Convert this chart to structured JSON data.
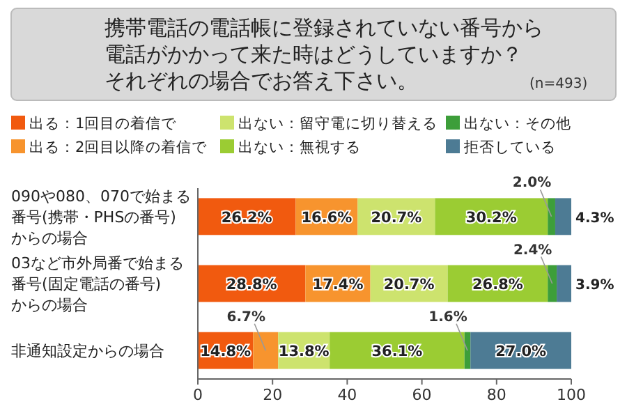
{
  "chart_data": {
    "type": "bar",
    "orientation": "horizontal",
    "stacked": true,
    "title": "携帯電話の電話帳に登録されていない番号から電話がかかって来た時はどうしていますか？それぞれの場合でお答え下さい。",
    "subtitle": "(n=493)",
    "categories": [
      "090や080、070で始まる番号(携帯・PHSの番号)からの場合",
      "03など市外局番で始まる番号(固定電話の番号)からの場合",
      "非通知設定からの場合"
    ],
    "series": [
      {
        "name": "出る：1回目の着信で",
        "color": "#f15a0f",
        "values": [
          26.2,
          28.8,
          14.8
        ],
        "value_labels": [
          "26.2%",
          "28.8%",
          "14.8%"
        ]
      },
      {
        "name": "出る：2回目以降の着信で",
        "color": "#f7942e",
        "values": [
          16.6,
          17.4,
          6.7
        ],
        "value_labels": [
          "16.6%",
          "17.4%",
          "6.7%"
        ]
      },
      {
        "name": "出ない：留守電に切り替える",
        "color": "#cde36e",
        "values": [
          20.7,
          20.7,
          13.8
        ],
        "value_labels": [
          "20.7%",
          "20.7%",
          "13.8%"
        ]
      },
      {
        "name": "出ない：無視する",
        "color": "#9bcc33",
        "values": [
          30.2,
          26.8,
          36.1
        ],
        "value_labels": [
          "30.2%",
          "26.8%",
          "36.1%"
        ]
      },
      {
        "name": "出ない：その他",
        "color": "#3d9e3a",
        "values": [
          2.0,
          2.4,
          1.6
        ],
        "value_labels": [
          "2.0%",
          "2.4%",
          "1.6%"
        ]
      },
      {
        "name": "拒否している",
        "color": "#4d7b94",
        "values": [
          4.3,
          3.9,
          27.0
        ],
        "value_labels": [
          "4.3%",
          "3.9%",
          "27.0%"
        ]
      }
    ],
    "xlim": [
      0,
      100
    ],
    "xticks": [
      0,
      20,
      40,
      60,
      80,
      100
    ],
    "legend": "top",
    "grid": false
  }
}
